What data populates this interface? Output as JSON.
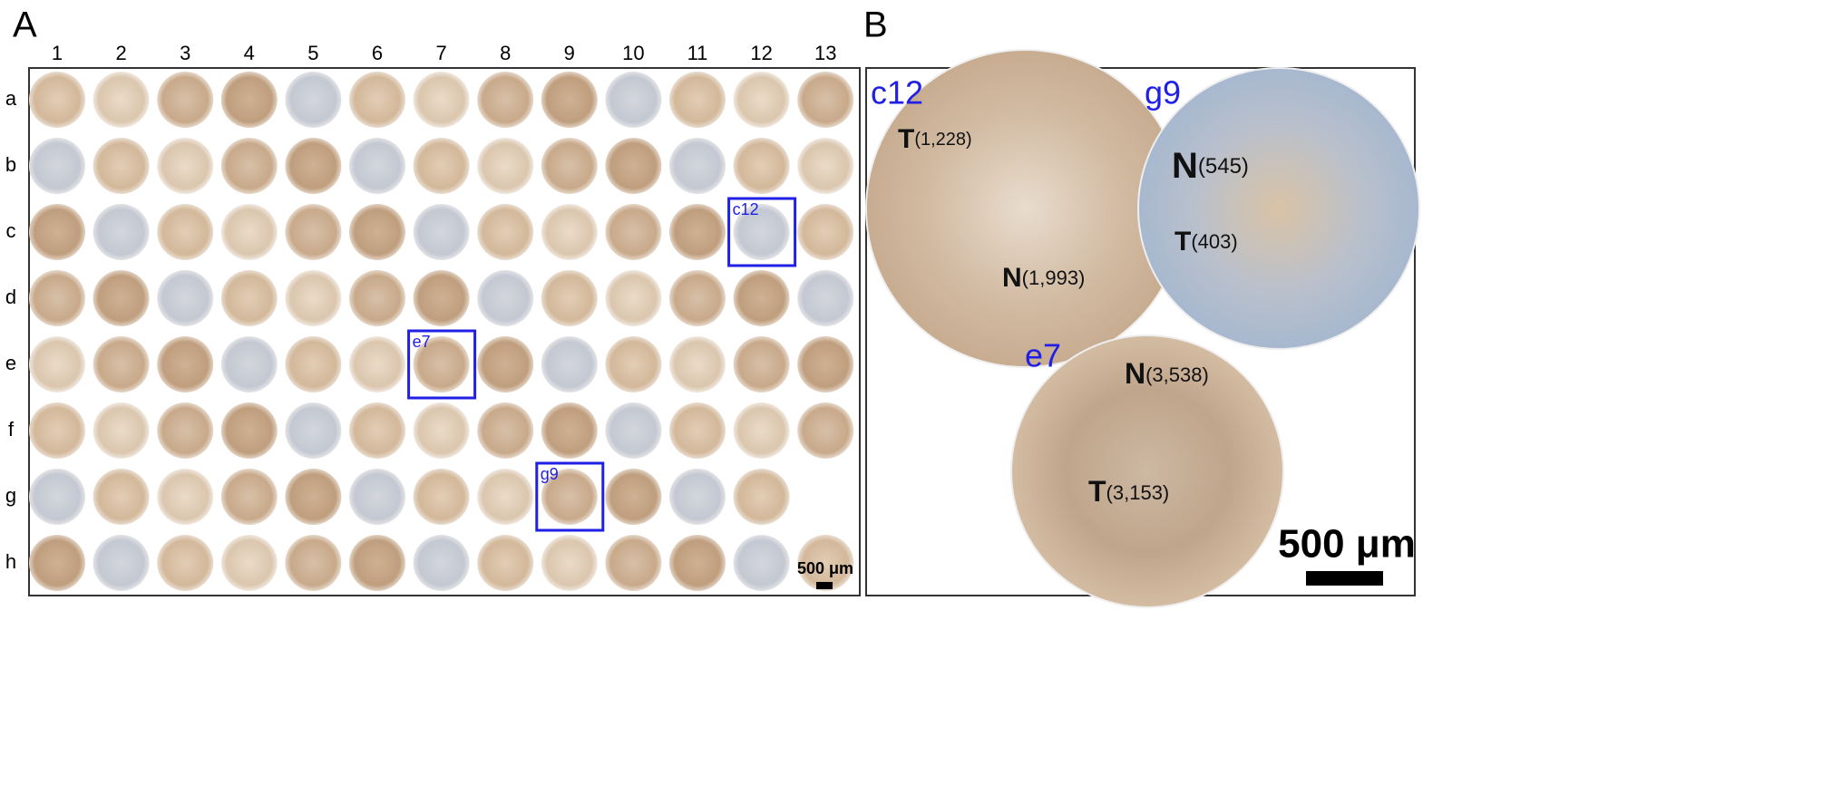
{
  "panels": [
    {
      "label": "A",
      "columns": [
        "1",
        "2",
        "3",
        "4",
        "5",
        "6",
        "7",
        "8",
        "9",
        "10",
        "11",
        "12",
        "13"
      ],
      "rows": [
        "a",
        "b",
        "c",
        "d",
        "e",
        "f",
        "g",
        "h"
      ],
      "highlights": [
        "c12",
        "e7",
        "g9"
      ],
      "scale": "500 μm"
    },
    {
      "label": "B",
      "cores": [
        {
          "id": "c12",
          "annotations": [
            {
              "letter": "T",
              "count": "(1,228)"
            },
            {
              "letter": "N",
              "count": "(1,993)"
            }
          ]
        },
        {
          "id": "g9",
          "annotations": [
            {
              "letter": "N",
              "count": "(545)"
            },
            {
              "letter": "T",
              "count": "(403)"
            }
          ]
        },
        {
          "id": "e7",
          "annotations": [
            {
              "letter": "N",
              "count": "(3,538)"
            },
            {
              "letter": "T",
              "count": "(3,153)"
            }
          ]
        }
      ],
      "scale": "500 μm"
    }
  ]
}
